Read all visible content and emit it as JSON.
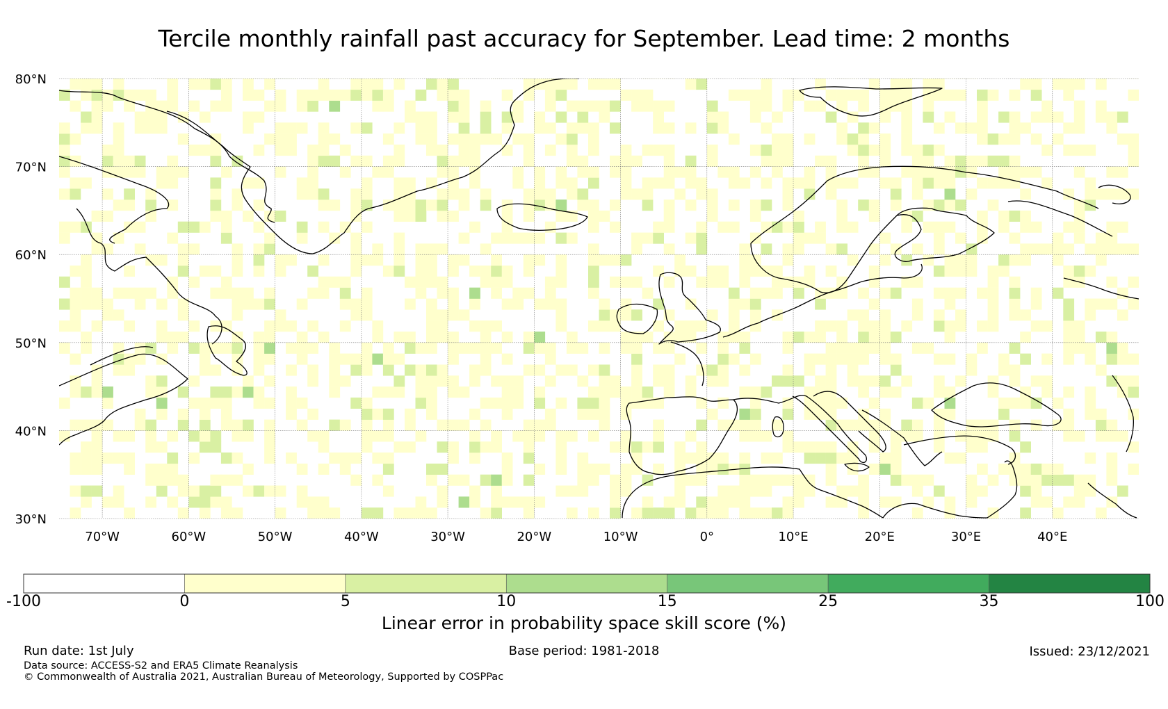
{
  "title": "Tercile monthly rainfall past accuracy for September. Lead time: 2 months",
  "map": {
    "lat_labels": [
      "80°N",
      "70°N",
      "60°N",
      "50°N",
      "40°N",
      "30°N"
    ],
    "lon_labels": [
      "70°W",
      "60°W",
      "50°W",
      "40°W",
      "30°W",
      "20°W",
      "10°W",
      "0°",
      "10°E",
      "20°E",
      "30°E",
      "40°E"
    ],
    "lat_range": [
      30,
      80
    ],
    "lon_range": [
      -75,
      50
    ],
    "gridlines": true,
    "grid_latitudes": [
      30,
      40,
      50,
      60,
      70,
      80
    ],
    "grid_longitudes": [
      -70,
      -60,
      -50,
      -40,
      -30,
      -20,
      -10,
      0,
      10,
      20,
      30,
      40
    ]
  },
  "colorbar": {
    "ticks": [
      "-100",
      "0",
      "5",
      "10",
      "15",
      "25",
      "35",
      "100"
    ],
    "colors": [
      "#ffffff",
      "#ffffcc",
      "#d9f0a3",
      "#addd8e",
      "#78c679",
      "#41ab5d",
      "#238443"
    ],
    "label": "Linear error in probability space skill score (%)"
  },
  "footer": {
    "run_date": "Run date: 1st July",
    "base_period": "Base period: 1981-2018",
    "issued": "Issued: 23/12/2021",
    "data_source": "Data source: ACCESS-S2 and ERA5 Climate Reanalysis",
    "copyright": "© Commonwealth of Australia 2021, Australian Bureau of Meteorology, Supported by COSPPac"
  }
}
